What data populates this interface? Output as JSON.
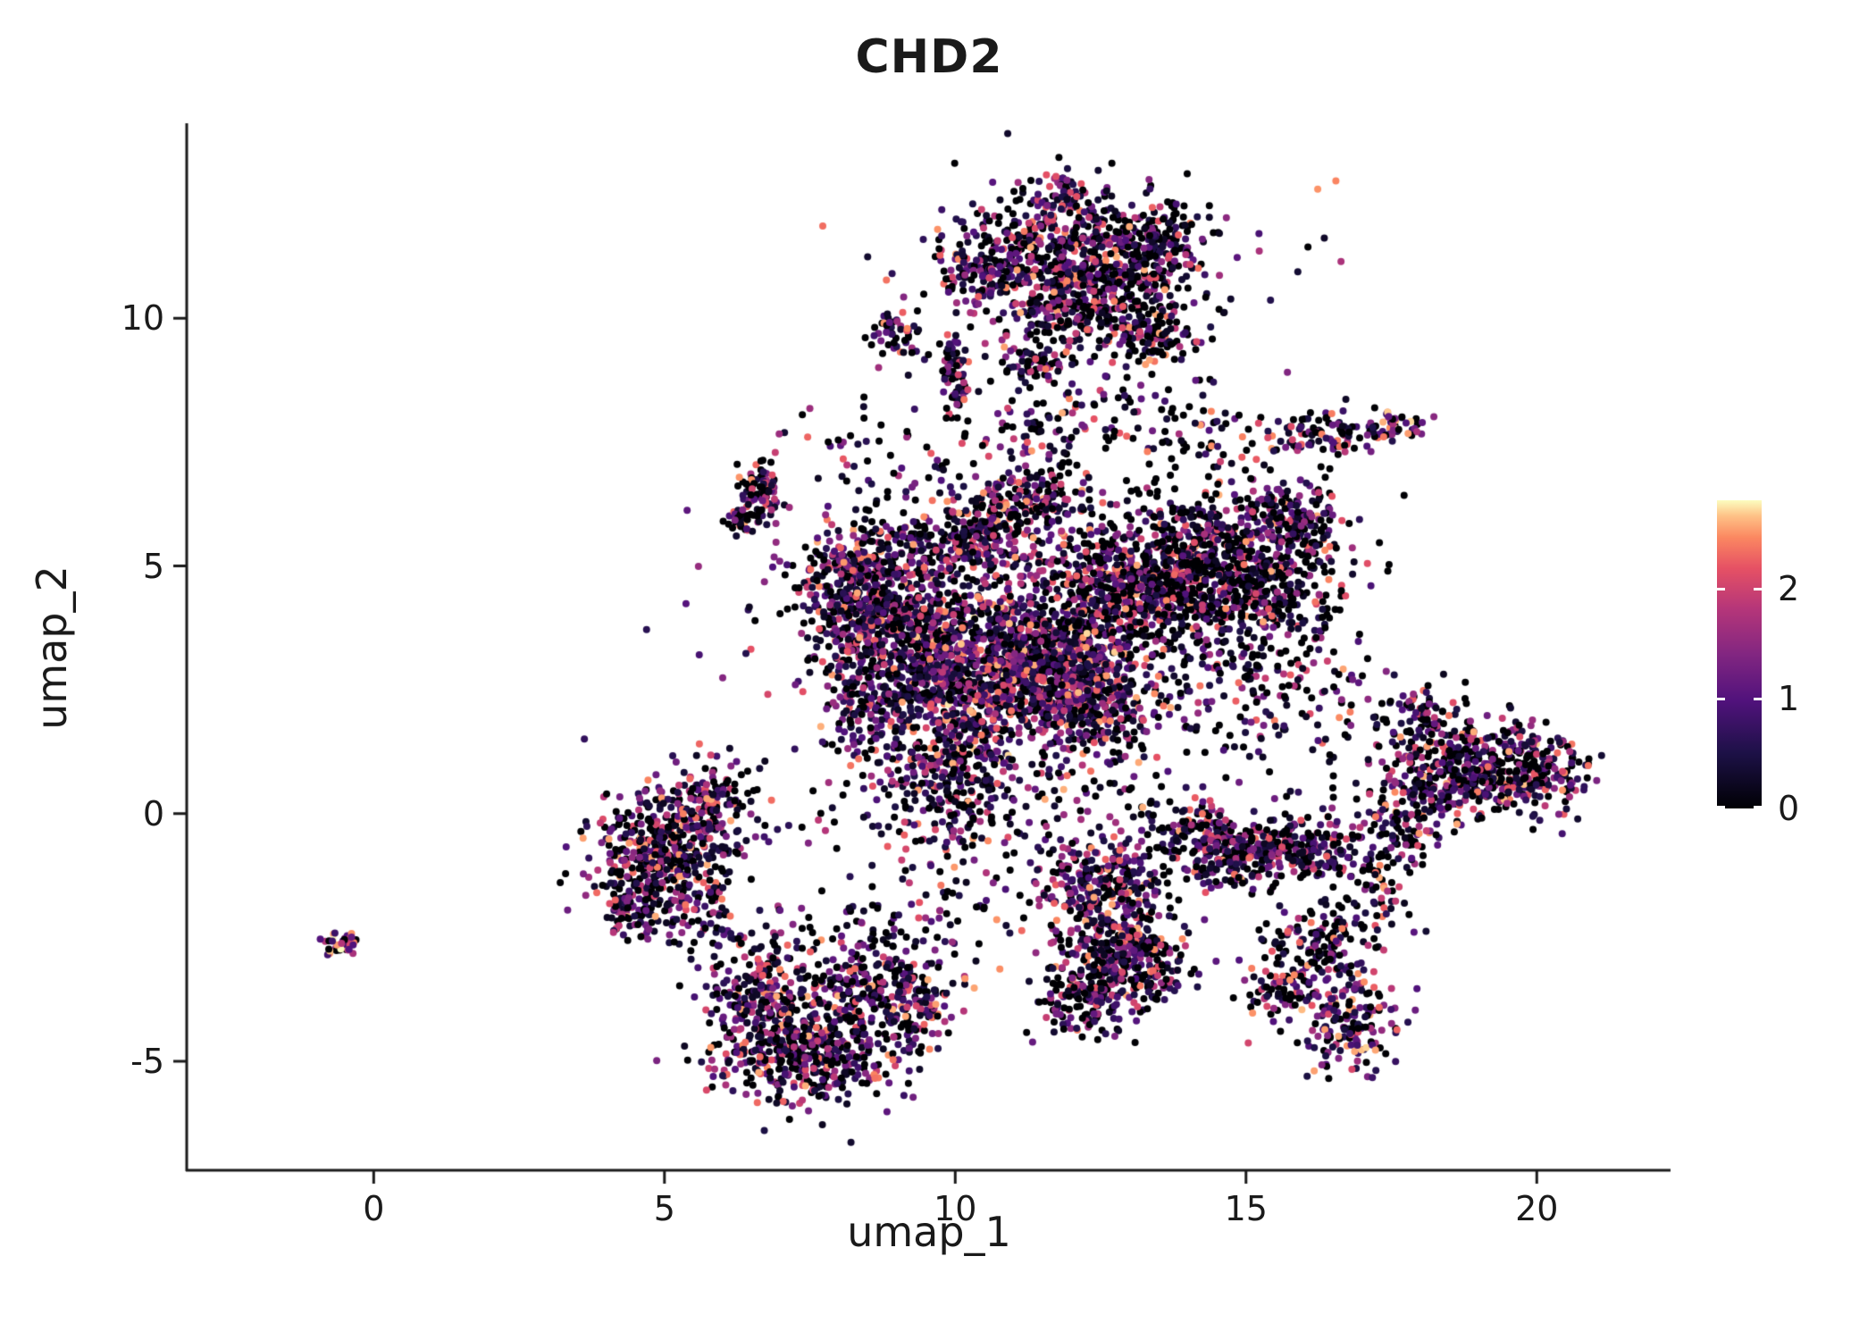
{
  "chart_data": {
    "type": "scatter",
    "title": "CHD2",
    "xlabel": "umap_1",
    "ylabel": "umap_2",
    "xlim": [
      -3.2,
      22.3
    ],
    "ylim": [
      -7.2,
      13.9
    ],
    "x_ticks": [
      0,
      5,
      10,
      15,
      20
    ],
    "y_ticks": [
      -5,
      0,
      5,
      10
    ],
    "grid": false,
    "legend_position": "right",
    "color_variable": "CHD2 expression",
    "color_range": [
      0,
      2.8
    ],
    "colorbar_ticks": [
      2,
      1,
      0
    ],
    "colormap_name": "magma",
    "colormap_stops": [
      [
        0,
        "#000004"
      ],
      [
        0.18,
        "#1d1147"
      ],
      [
        0.35,
        "#51127c"
      ],
      [
        0.5,
        "#822681"
      ],
      [
        0.65,
        "#b63679"
      ],
      [
        0.78,
        "#e65164"
      ],
      [
        0.88,
        "#fb8861"
      ],
      [
        0.95,
        "#fec287"
      ],
      [
        1,
        "#fcfdbf"
      ]
    ],
    "point_radius_px": 4,
    "n_points_approx": 11650,
    "cluster_fields": [
      "cx",
      "cy",
      "sx",
      "sy",
      "n",
      "zero_frac",
      "hot_shift"
    ],
    "clusters": [
      [
        11.6,
        11.2,
        0.75,
        0.6,
        380,
        0.3
      ],
      [
        12.9,
        10.9,
        0.6,
        0.55,
        260,
        0.38
      ],
      [
        13.6,
        11.6,
        0.4,
        0.4,
        120,
        0.42
      ],
      [
        10.4,
        10.9,
        0.35,
        0.3,
        90,
        0.3
      ],
      [
        11.9,
        12.4,
        0.35,
        0.25,
        70,
        0.25
      ],
      [
        12.0,
        9.9,
        0.5,
        0.35,
        110,
        0.35
      ],
      [
        13.4,
        9.6,
        0.35,
        0.3,
        90,
        0.4
      ],
      [
        10.0,
        8.9,
        0.12,
        0.45,
        70,
        0.25
      ],
      [
        11.35,
        9.1,
        0.3,
        0.18,
        60,
        0.3
      ],
      [
        12.3,
        10.8,
        1.6,
        1.1,
        160,
        0.35
      ],
      [
        16.2,
        7.6,
        0.45,
        0.25,
        90,
        0.3
      ],
      [
        17.5,
        7.8,
        0.3,
        0.15,
        55,
        0.3,
        0.3
      ],
      [
        11.6,
        7.6,
        0.5,
        0.7,
        80,
        0.35
      ],
      [
        13.2,
        7.9,
        0.8,
        0.6,
        60,
        0.45
      ],
      [
        8.4,
        4.5,
        0.55,
        0.75,
        480,
        0.28
      ],
      [
        9.3,
        3.6,
        0.6,
        0.6,
        350,
        0.25
      ],
      [
        10.5,
        2.7,
        0.8,
        0.8,
        700,
        0.22,
        0.15
      ],
      [
        11.6,
        3.3,
        0.7,
        0.7,
        520,
        0.25
      ],
      [
        12.4,
        2.2,
        0.5,
        0.6,
        300,
        0.28
      ],
      [
        14.3,
        4.9,
        1.0,
        0.75,
        900,
        0.48
      ],
      [
        12.9,
        4.4,
        0.6,
        0.6,
        350,
        0.4
      ],
      [
        10.2,
        5.4,
        0.7,
        0.5,
        260,
        0.3
      ],
      [
        11.2,
        6.2,
        0.6,
        0.4,
        180,
        0.32
      ],
      [
        9.8,
        1.0,
        0.5,
        0.7,
        220,
        0.3
      ],
      [
        8.6,
        2.2,
        0.4,
        0.6,
        180,
        0.3
      ],
      [
        10.8,
        3.4,
        2.2,
        1.8,
        300,
        0.3
      ],
      [
        15.8,
        4.2,
        0.5,
        0.8,
        90,
        0.45
      ],
      [
        15.9,
        6.1,
        0.3,
        0.3,
        60,
        0.4
      ],
      [
        10.6,
        0.2,
        1.6,
        0.6,
        160,
        0.35
      ],
      [
        14.9,
        -0.8,
        0.5,
        0.35,
        230,
        0.35
      ],
      [
        13.9,
        -0.4,
        0.5,
        0.4,
        120,
        0.4
      ],
      [
        12.5,
        -1.4,
        0.5,
        0.45,
        200,
        0.3
      ],
      [
        12.7,
        -2.6,
        0.55,
        0.55,
        260,
        0.3
      ],
      [
        12.3,
        -3.7,
        0.45,
        0.5,
        170,
        0.35
      ],
      [
        13.3,
        -3.1,
        0.4,
        0.4,
        110,
        0.35
      ],
      [
        16.2,
        -2.8,
        0.5,
        0.5,
        170,
        0.35
      ],
      [
        16.8,
        -4.2,
        0.4,
        0.5,
        150,
        0.3,
        0.2
      ],
      [
        15.6,
        -3.6,
        0.3,
        0.3,
        60,
        0.4
      ],
      [
        16.1,
        -0.7,
        0.5,
        0.3,
        150,
        0.35
      ],
      [
        16.6,
        1.8,
        0.8,
        0.9,
        70,
        0.4
      ],
      [
        19.5,
        0.8,
        0.7,
        0.45,
        420,
        0.3,
        0.1
      ],
      [
        18.2,
        0.8,
        0.5,
        0.5,
        180,
        0.35
      ],
      [
        17.6,
        -0.2,
        0.35,
        0.4,
        90,
        0.35
      ],
      [
        18.0,
        2.0,
        0.4,
        0.3,
        70,
        0.3
      ],
      [
        7.4,
        -4.7,
        0.85,
        0.55,
        520,
        0.32
      ],
      [
        6.6,
        -3.6,
        0.4,
        0.5,
        160,
        0.3
      ],
      [
        8.6,
        -3.4,
        0.55,
        0.4,
        180,
        0.28
      ],
      [
        9.3,
        -4.0,
        0.3,
        0.35,
        80,
        0.3
      ],
      [
        7.8,
        -2.6,
        1.2,
        0.5,
        90,
        0.35
      ],
      [
        5.0,
        -0.8,
        0.6,
        0.65,
        480,
        0.3
      ],
      [
        5.8,
        0.2,
        0.35,
        0.4,
        130,
        0.28
      ],
      [
        4.5,
        -1.9,
        0.3,
        0.3,
        70,
        0.35
      ],
      [
        5.9,
        -2.4,
        0.5,
        0.3,
        40,
        0.4
      ],
      [
        -0.55,
        -2.62,
        0.18,
        0.1,
        40,
        0.2,
        0.5
      ],
      [
        6.65,
        6.45,
        0.18,
        0.3,
        90,
        0.3
      ],
      [
        6.3,
        5.9,
        0.15,
        0.15,
        30,
        0.4
      ],
      [
        9.0,
        7.3,
        1.0,
        0.8,
        60,
        0.4
      ],
      [
        14.5,
        7.6,
        0.8,
        0.6,
        40,
        0.5
      ],
      [
        10.5,
        -1.6,
        1.2,
        0.8,
        100,
        0.35
      ],
      [
        14.6,
        2.6,
        0.8,
        0.8,
        120,
        0.35
      ],
      [
        15.5,
        5.6,
        0.6,
        0.5,
        120,
        0.45
      ],
      [
        17.3,
        -1.6,
        0.4,
        0.5,
        60,
        0.35
      ],
      [
        9.0,
        9.7,
        0.25,
        0.3,
        50,
        0.3
      ]
    ]
  },
  "layout_text": {
    "title": "CHD2",
    "x_axis_label": "umap_1",
    "y_axis_label": "umap_2"
  }
}
